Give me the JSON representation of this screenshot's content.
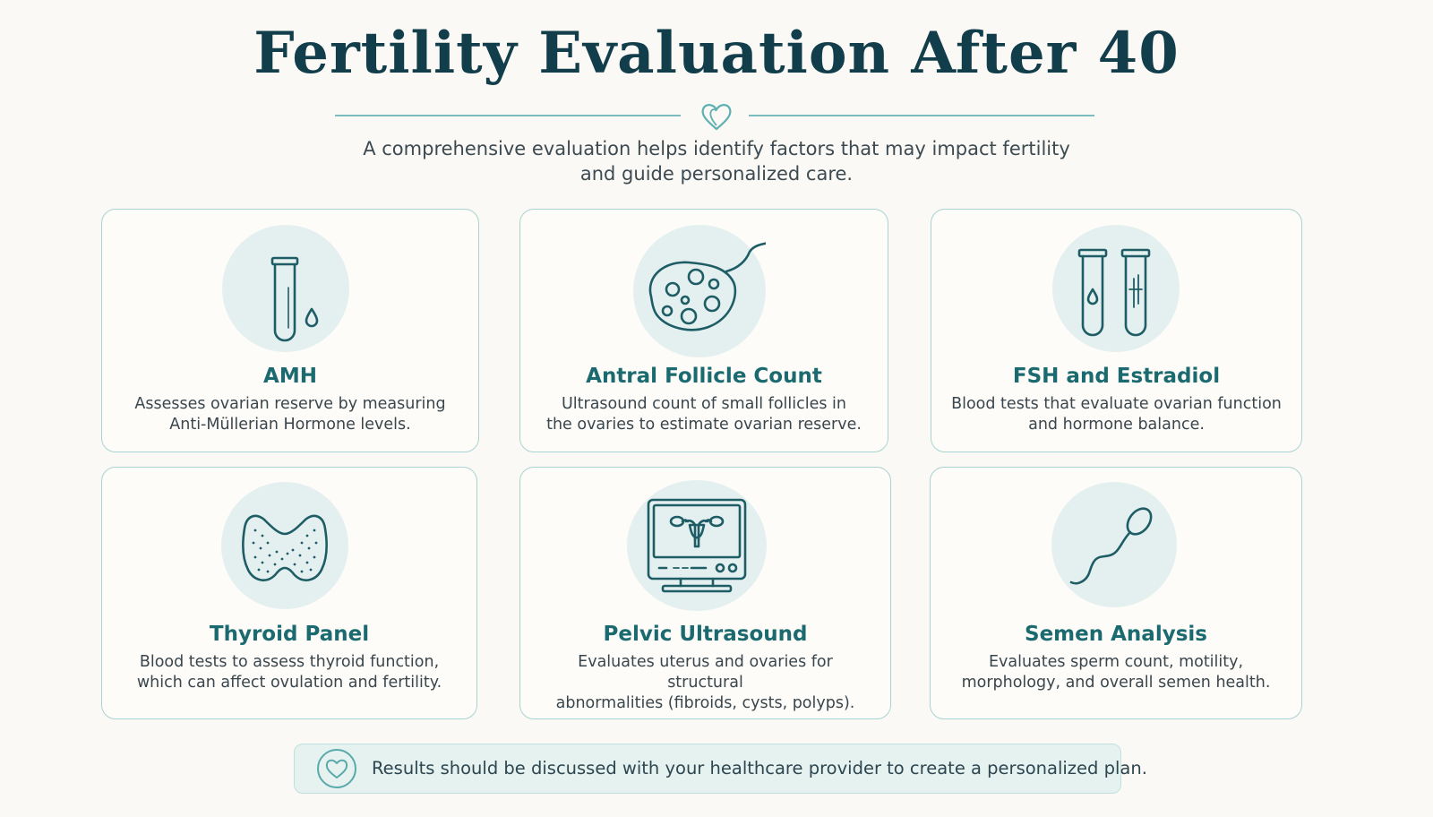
{
  "title": "Fertility Evaluation After 40",
  "subtitle_line1": "A comprehensive evaluation helps identify factors that may impact fertility",
  "subtitle_line2": "and guide personalized care.",
  "cards": [
    {
      "title": "AMH",
      "desc_line1": "Assesses ovarian reserve by measuring",
      "desc_line2": "Anti-Müllerian Hormone levels.",
      "icon": "test-tube-icon"
    },
    {
      "title": "Antral Follicle Count",
      "desc_line1": "Ultrasound count of small follicles in",
      "desc_line2": "the ovaries to estimate ovarian reserve.",
      "icon": "ovary-follicles-icon"
    },
    {
      "title": "FSH and Estradiol",
      "desc_line1": "Blood tests that evaluate ovarian function",
      "desc_line2": "and hormone balance.",
      "icon": "two-test-tubes-icon"
    },
    {
      "title": "Thyroid Panel",
      "desc_line1": "Blood tests to assess thyroid function,",
      "desc_line2": "which can affect ovulation and fertility.",
      "icon": "thyroid-icon"
    },
    {
      "title": "Pelvic Ultrasound",
      "desc_line1": "Evaluates uterus and ovaries for structural",
      "desc_line2": "abnormalities (fibroids, cysts, polyps).",
      "icon": "ultrasound-monitor-icon"
    },
    {
      "title": "Semen Analysis",
      "desc_line1": "Evaluates sperm count, motility,",
      "desc_line2": "morphology, and overall semen health.",
      "icon": "sperm-icon"
    }
  ],
  "footer": {
    "text": "Results should be discussed with your healthcare provider to create a personalized plan.",
    "icon": "heart-icon"
  },
  "colors": {
    "title": "#123e4c",
    "accent": "#1b6a6f",
    "icon_stroke": "#1f5d66",
    "card_border": "#a9d3d2",
    "icon_bg": "#e4f0ef",
    "background": "#fbf9f5"
  }
}
